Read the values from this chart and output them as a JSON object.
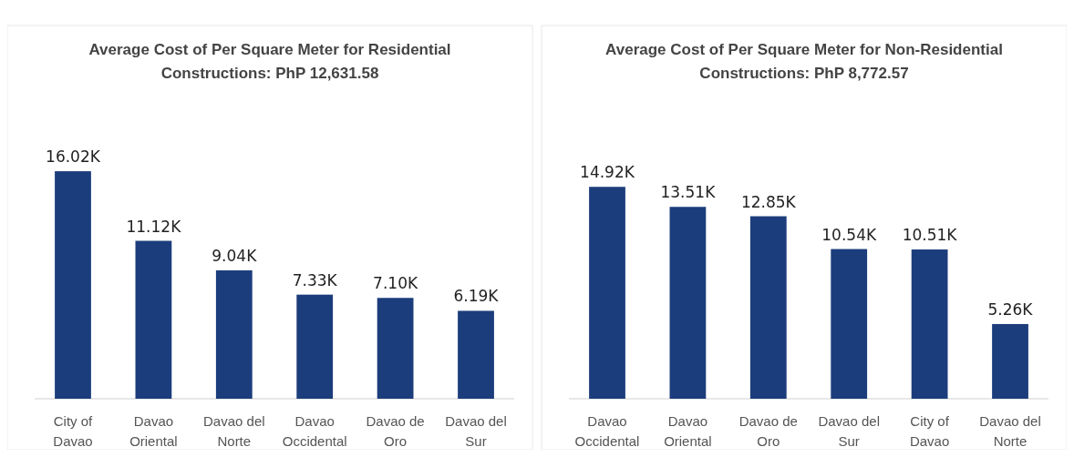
{
  "chart_data": [
    {
      "type": "bar",
      "title": "Average Cost of Per Square Meter for Residential Constructions: PhP 12,631.58",
      "categories": [
        "City of Davao",
        "Davao Oriental",
        "Davao del Norte",
        "Davao Occidental",
        "Davao de Oro",
        "Davao del Sur"
      ],
      "values": [
        16.02,
        11.12,
        9.04,
        7.33,
        7.1,
        6.19
      ],
      "value_labels": [
        "16.02K",
        "11.12K",
        "9.04K",
        "7.33K",
        "7.10K",
        "6.19K"
      ],
      "color": "#1c3d7c"
    },
    {
      "type": "bar",
      "title": "Average Cost of Per Square Meter for Non-Residential Constructions: PhP 8,772.57",
      "categories": [
        "Davao Occidental",
        "Davao Oriental",
        "Davao de Oro",
        "Davao del Sur",
        "City of Davao",
        "Davao del Norte"
      ],
      "values": [
        14.92,
        13.51,
        12.85,
        10.54,
        10.51,
        5.26
      ],
      "value_labels": [
        "14.92K",
        "13.51K",
        "12.85K",
        "10.54K",
        "10.51K",
        "5.26K"
      ],
      "color": "#1c3d7c"
    }
  ]
}
